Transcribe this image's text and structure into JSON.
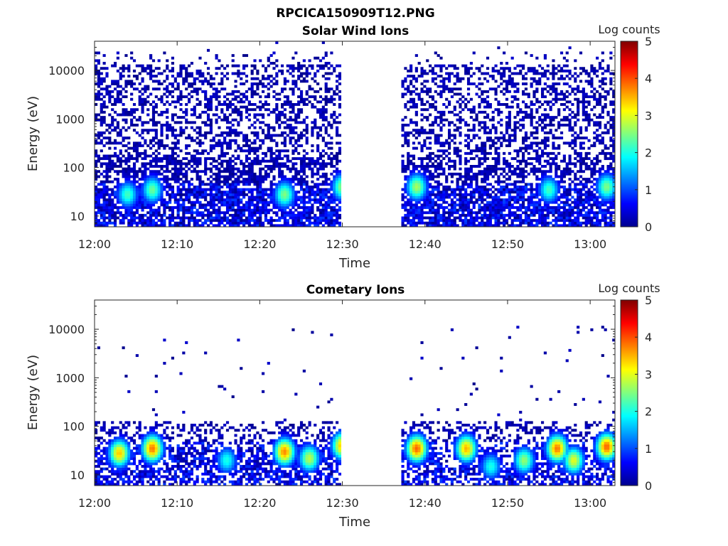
{
  "figure_title": "RPCICA150909T12.PNG",
  "chart_data": [
    {
      "type": "heatmap",
      "title": "Solar Wind Ions",
      "xlabel": "Time",
      "ylabel": "Energy (eV)",
      "colorbar_label": "Log counts",
      "x_ticks": [
        "12:00",
        "12:10",
        "12:20",
        "12:30",
        "12:40",
        "12:50",
        "13:00"
      ],
      "y_ticks": [
        "10",
        "100",
        "1000",
        "10000"
      ],
      "y_scale": "log",
      "y_range_eV": [
        6,
        40000
      ],
      "x_range": [
        "12:00",
        "13:03"
      ],
      "data_gap": [
        "12:30",
        "12:37"
      ],
      "colorbar_ticks": [
        "0",
        "1",
        "2",
        "3",
        "4",
        "5"
      ],
      "clim": [
        0,
        5
      ],
      "colormap": "jet",
      "peaks": [
        {
          "time": "12:04",
          "energy_eV": 28,
          "log_counts": 2.2
        },
        {
          "time": "12:07",
          "energy_eV": 35,
          "log_counts": 2.4
        },
        {
          "time": "12:23",
          "energy_eV": 28,
          "log_counts": 2.5
        },
        {
          "time": "12:30",
          "energy_eV": 40,
          "log_counts": 2.6
        },
        {
          "time": "12:39",
          "energy_eV": 40,
          "log_counts": 2.7
        },
        {
          "time": "12:55",
          "energy_eV": 35,
          "log_counts": 2.2
        },
        {
          "time": "13:02",
          "energy_eV": 40,
          "log_counts": 2.5
        }
      ]
    },
    {
      "type": "heatmap",
      "title": "Cometary Ions",
      "xlabel": "Time",
      "ylabel": "Energy (eV)",
      "colorbar_label": "Log counts",
      "x_ticks": [
        "12:00",
        "12:10",
        "12:20",
        "12:30",
        "12:40",
        "12:50",
        "13:00"
      ],
      "y_ticks": [
        "10",
        "100",
        "1000",
        "10000"
      ],
      "y_scale": "log",
      "y_range_eV": [
        6,
        40000
      ],
      "x_range": [
        "12:00",
        "13:03"
      ],
      "data_gap": [
        "12:30",
        "12:37"
      ],
      "colorbar_ticks": [
        "0",
        "1",
        "2",
        "3",
        "4",
        "5"
      ],
      "clim": [
        0,
        5
      ],
      "colormap": "jet",
      "peaks": [
        {
          "time": "12:03",
          "energy_eV": 28,
          "log_counts": 3.4
        },
        {
          "time": "12:07",
          "energy_eV": 35,
          "log_counts": 3.8
        },
        {
          "time": "12:16",
          "energy_eV": 20,
          "log_counts": 2.0
        },
        {
          "time": "12:23",
          "energy_eV": 30,
          "log_counts": 3.7
        },
        {
          "time": "12:26",
          "energy_eV": 22,
          "log_counts": 2.8
        },
        {
          "time": "12:30",
          "energy_eV": 40,
          "log_counts": 3.5
        },
        {
          "time": "12:39",
          "energy_eV": 35,
          "log_counts": 3.9
        },
        {
          "time": "12:45",
          "energy_eV": 35,
          "log_counts": 3.5
        },
        {
          "time": "12:48",
          "energy_eV": 15,
          "log_counts": 2.0
        },
        {
          "time": "12:52",
          "energy_eV": 20,
          "log_counts": 2.6
        },
        {
          "time": "12:56",
          "energy_eV": 35,
          "log_counts": 3.8
        },
        {
          "time": "12:58",
          "energy_eV": 20,
          "log_counts": 3.0
        },
        {
          "time": "13:02",
          "energy_eV": 38,
          "log_counts": 3.9
        }
      ]
    }
  ]
}
